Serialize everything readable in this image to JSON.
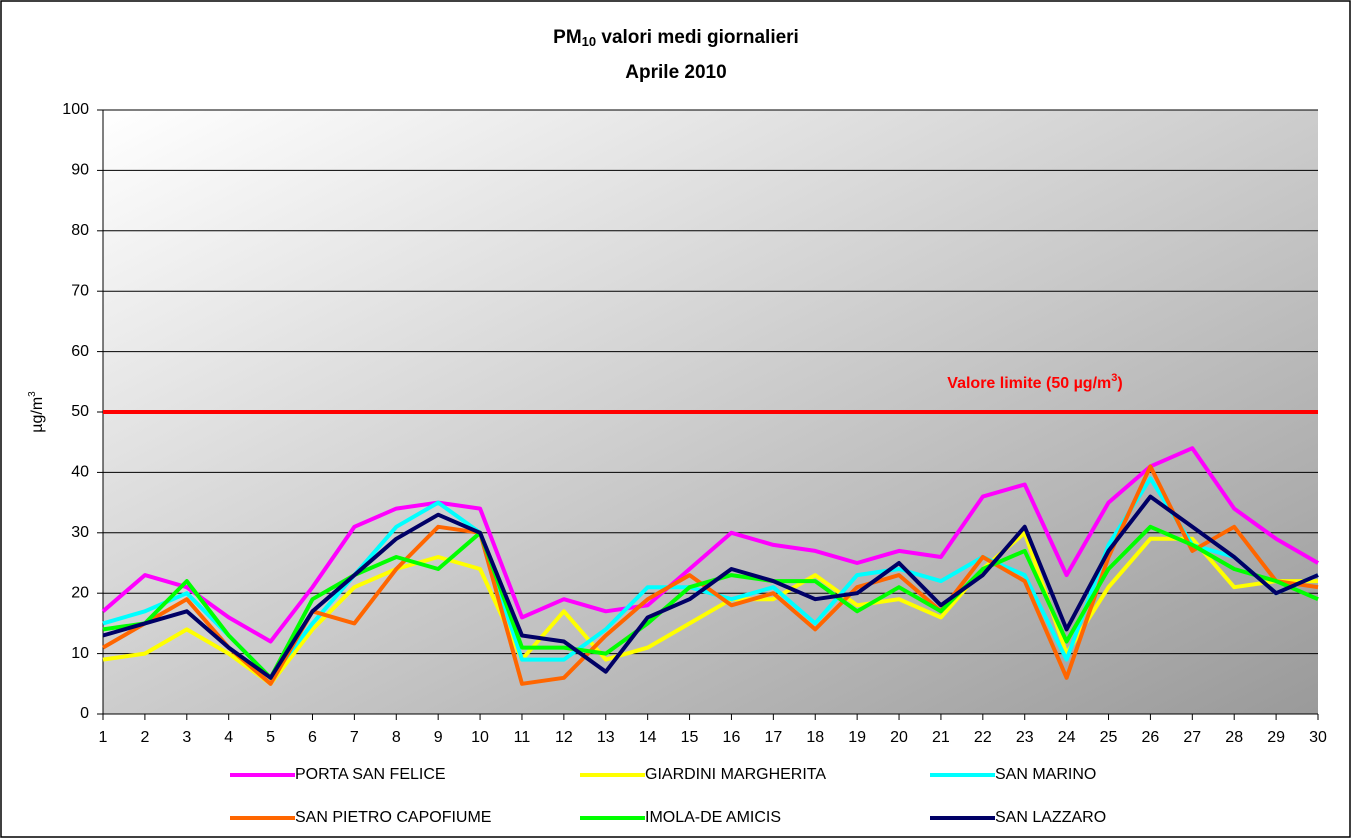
{
  "chart_data": {
    "type": "line",
    "title": [
      "PM",
      "10",
      " valori medi giornalieri"
    ],
    "subtitle": "Aprile 2010",
    "y_label": [
      "µg/m",
      "3"
    ],
    "categories": [
      "1",
      "2",
      "3",
      "4",
      "5",
      "6",
      "7",
      "8",
      "9",
      "10",
      "11",
      "12",
      "13",
      "14",
      "15",
      "16",
      "17",
      "18",
      "19",
      "20",
      "21",
      "22",
      "23",
      "24",
      "25",
      "26",
      "27",
      "28",
      "29",
      "30"
    ],
    "ylim": [
      0,
      100
    ],
    "yticks": [
      0,
      10,
      20,
      30,
      40,
      50,
      60,
      70,
      80,
      90,
      100
    ],
    "grid": true,
    "legend": "bottom",
    "reference_line": {
      "value": 50,
      "color": "#ff0000",
      "label": [
        "Valore limite  (50 µg/m",
        "3",
        ")"
      ]
    },
    "series": [
      {
        "name": "PORTA SAN FELICE",
        "color": "#ff00ff",
        "values": [
          17,
          23,
          21,
          16,
          12,
          21,
          31,
          34,
          35,
          34,
          16,
          19,
          17,
          18,
          24,
          30,
          28,
          27,
          25,
          27,
          26,
          36,
          38,
          23,
          35,
          41,
          44,
          34,
          29,
          25
        ]
      },
      {
        "name": "GIARDINI MARGHERITA",
        "color": "#ffff00",
        "values": [
          9,
          10,
          14,
          10,
          5,
          14,
          21,
          24,
          26,
          24,
          9,
          17,
          9,
          11,
          15,
          19,
          19,
          23,
          18,
          19,
          16,
          24,
          30,
          10,
          21,
          29,
          29,
          21,
          22,
          22
        ]
      },
      {
        "name": "SAN MARINO",
        "color": "#00ffff",
        "values": [
          15,
          17,
          20,
          13,
          6,
          15,
          23,
          31,
          35,
          30,
          9,
          9,
          14,
          21,
          21,
          19,
          21,
          15,
          23,
          24,
          22,
          26,
          23,
          9,
          28,
          39,
          28,
          26,
          20,
          23
        ]
      },
      {
        "name": "SAN PIETRO CAPOFIUME",
        "color": "#ff6600",
        "values": [
          11,
          15,
          19,
          11,
          5,
          17,
          15,
          24,
          31,
          30,
          5,
          6,
          13,
          19,
          23,
          18,
          20,
          14,
          21,
          23,
          17,
          26,
          22,
          6,
          26,
          41,
          27,
          31,
          22,
          21
        ]
      },
      {
        "name": "IMOLA-DE AMICIS",
        "color": "#00ff00",
        "values": [
          14,
          15,
          22,
          13,
          6,
          19,
          23,
          26,
          24,
          30,
          11,
          11,
          10,
          15,
          21,
          23,
          22,
          22,
          17,
          21,
          17,
          24,
          27,
          12,
          24,
          31,
          28,
          24,
          22,
          19
        ]
      },
      {
        "name": "SAN LAZZARO",
        "color": "#000066",
        "values": [
          13,
          15,
          17,
          11,
          6,
          17,
          23,
          29,
          33,
          30,
          13,
          12,
          7,
          16,
          19,
          24,
          22,
          19,
          20,
          25,
          18,
          23,
          31,
          14,
          27,
          36,
          31,
          26,
          20,
          23
        ]
      }
    ]
  }
}
